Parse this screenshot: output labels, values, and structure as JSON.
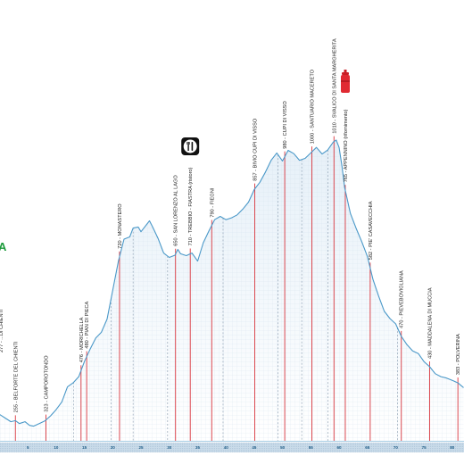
{
  "chart_data": {
    "type": "area",
    "title": "",
    "xlabel": "",
    "ylabel": "",
    "x_ticks": [
      "5",
      "10",
      "15",
      "20",
      "25",
      "30",
      "35",
      "40",
      "45",
      "50",
      "55",
      "60",
      "65",
      "70",
      "75",
      "80"
    ],
    "xlim": [
      0,
      82
    ],
    "ylim": [
      200,
      1100
    ],
    "grid": true,
    "cut_off_label": "A",
    "colors": {
      "profile_line": "#4a98c8",
      "fill_top": "#e6f0f8",
      "marker_line": "#d9363e",
      "dashed_line": "#7f93a8",
      "axis_band": "#c9dbe9"
    },
    "profile": [
      {
        "x": 0,
        "y": 272
      },
      {
        "x": 1,
        "y": 262
      },
      {
        "x": 2,
        "y": 252
      },
      {
        "x": 2.8,
        "y": 255
      },
      {
        "x": 3.5,
        "y": 247
      },
      {
        "x": 4.5,
        "y": 252
      },
      {
        "x": 5.3,
        "y": 242
      },
      {
        "x": 6,
        "y": 240
      },
      {
        "x": 7,
        "y": 247
      },
      {
        "x": 8,
        "y": 254
      },
      {
        "x": 9,
        "y": 268
      },
      {
        "x": 10,
        "y": 285
      },
      {
        "x": 11,
        "y": 306
      },
      {
        "x": 12,
        "y": 347
      },
      {
        "x": 13,
        "y": 358
      },
      {
        "x": 14,
        "y": 375
      },
      {
        "x": 15,
        "y": 416
      },
      {
        "x": 16,
        "y": 450
      },
      {
        "x": 17,
        "y": 480
      },
      {
        "x": 18,
        "y": 496
      },
      {
        "x": 19,
        "y": 532
      },
      {
        "x": 20,
        "y": 610
      },
      {
        "x": 21,
        "y": 690
      },
      {
        "x": 22,
        "y": 750
      },
      {
        "x": 23,
        "y": 756
      },
      {
        "x": 23.6,
        "y": 780
      },
      {
        "x": 24.5,
        "y": 783
      },
      {
        "x": 25,
        "y": 770
      },
      {
        "x": 26,
        "y": 790
      },
      {
        "x": 26.5,
        "y": 800
      },
      {
        "x": 27,
        "y": 785
      },
      {
        "x": 28,
        "y": 752
      },
      {
        "x": 29,
        "y": 712
      },
      {
        "x": 30,
        "y": 700
      },
      {
        "x": 31,
        "y": 706
      },
      {
        "x": 31.5,
        "y": 722
      },
      {
        "x": 32,
        "y": 710
      },
      {
        "x": 33,
        "y": 705
      },
      {
        "x": 34,
        "y": 712
      },
      {
        "x": 35,
        "y": 690
      },
      {
        "x": 36,
        "y": 740
      },
      {
        "x": 37,
        "y": 772
      },
      {
        "x": 38,
        "y": 803
      },
      {
        "x": 39,
        "y": 812
      },
      {
        "x": 40,
        "y": 803
      },
      {
        "x": 41,
        "y": 808
      },
      {
        "x": 42,
        "y": 816
      },
      {
        "x": 43,
        "y": 832
      },
      {
        "x": 44,
        "y": 851
      },
      {
        "x": 45,
        "y": 885
      },
      {
        "x": 46,
        "y": 905
      },
      {
        "x": 47,
        "y": 933
      },
      {
        "x": 48,
        "y": 965
      },
      {
        "x": 49,
        "y": 985
      },
      {
        "x": 50,
        "y": 963
      },
      {
        "x": 51,
        "y": 992
      },
      {
        "x": 52,
        "y": 983
      },
      {
        "x": 53,
        "y": 965
      },
      {
        "x": 54,
        "y": 970
      },
      {
        "x": 55,
        "y": 985
      },
      {
        "x": 56,
        "y": 1000
      },
      {
        "x": 57,
        "y": 982
      },
      {
        "x": 58,
        "y": 993
      },
      {
        "x": 59,
        "y": 1015
      },
      {
        "x": 59.5,
        "y": 1020
      },
      {
        "x": 60,
        "y": 1000
      },
      {
        "x": 60.5,
        "y": 950
      },
      {
        "x": 61,
        "y": 890
      },
      {
        "x": 62,
        "y": 820
      },
      {
        "x": 63,
        "y": 780
      },
      {
        "x": 64,
        "y": 743
      },
      {
        "x": 65,
        "y": 703
      },
      {
        "x": 66,
        "y": 640
      },
      {
        "x": 67,
        "y": 594
      },
      {
        "x": 68,
        "y": 553
      },
      {
        "x": 69,
        "y": 533
      },
      {
        "x": 70,
        "y": 519
      },
      {
        "x": 71,
        "y": 485
      },
      {
        "x": 72,
        "y": 462
      },
      {
        "x": 73,
        "y": 445
      },
      {
        "x": 74,
        "y": 438
      },
      {
        "x": 75,
        "y": 416
      },
      {
        "x": 76,
        "y": 402
      },
      {
        "x": 77,
        "y": 383
      },
      {
        "x": 78,
        "y": 375
      },
      {
        "x": 79,
        "y": 371
      },
      {
        "x": 80,
        "y": 365
      },
      {
        "x": 81,
        "y": 358
      },
      {
        "x": 82,
        "y": 345
      }
    ],
    "waypoints": [
      {
        "label": "255 - BELFORTE DEL CHIENTI",
        "x": 2.8
      },
      {
        "label": "323 - CAMPOROTONDO",
        "x": 8.2
      },
      {
        "label": "476 - MORICHELLA",
        "x": 14.4
      },
      {
        "label": "480 - PIAN DI PIECA",
        "x": 15.4
      },
      {
        "label": "720 - MONASTERO",
        "x": 21.2
      },
      {
        "label": "650 - SAN LORENZO AL LAGO",
        "x": 31.1
      },
      {
        "label": "710 - TREBBIO - FIASTRA (ristoro)",
        "x": 33.7
      },
      {
        "label": "790 - FIEGNI",
        "x": 37.5
      },
      {
        "label": "857 - BIVIO CUPI DI VISSO",
        "x": 45.1
      },
      {
        "label": "980 - CUPI DI VISSO",
        "x": 50.4
      },
      {
        "label": "1000 - SANTUARIO MACERETO",
        "x": 55.2
      },
      {
        "label": "1010 - SVALICO DI SANTA MARGHERITA",
        "x": 59.1
      },
      {
        "label": "765 - APPENNINO (rifornimento)",
        "x": 61.1
      },
      {
        "label": "582 - PIE' CASAVECCHIA",
        "x": 65.5
      },
      {
        "label": "470 - PIEVEBOVIGLIANA",
        "x": 71.0
      },
      {
        "label": "430 - MADDALENA DI MUCCIA",
        "x": 76.0
      },
      {
        "label": "383 - POLVERINA",
        "x": 81.0
      }
    ],
    "cut_off_waypoint": "277 - ...DI CHIENTI",
    "dashed_markers_x": [
      13.1,
      19.7,
      23.6,
      29.7,
      39.5,
      49.2,
      53.4,
      58.0,
      70.3
    ],
    "icons": [
      {
        "name": "restaurant-icon",
        "x": 33.7
      },
      {
        "name": "water-bottle-icon",
        "x": 61.1
      }
    ]
  }
}
